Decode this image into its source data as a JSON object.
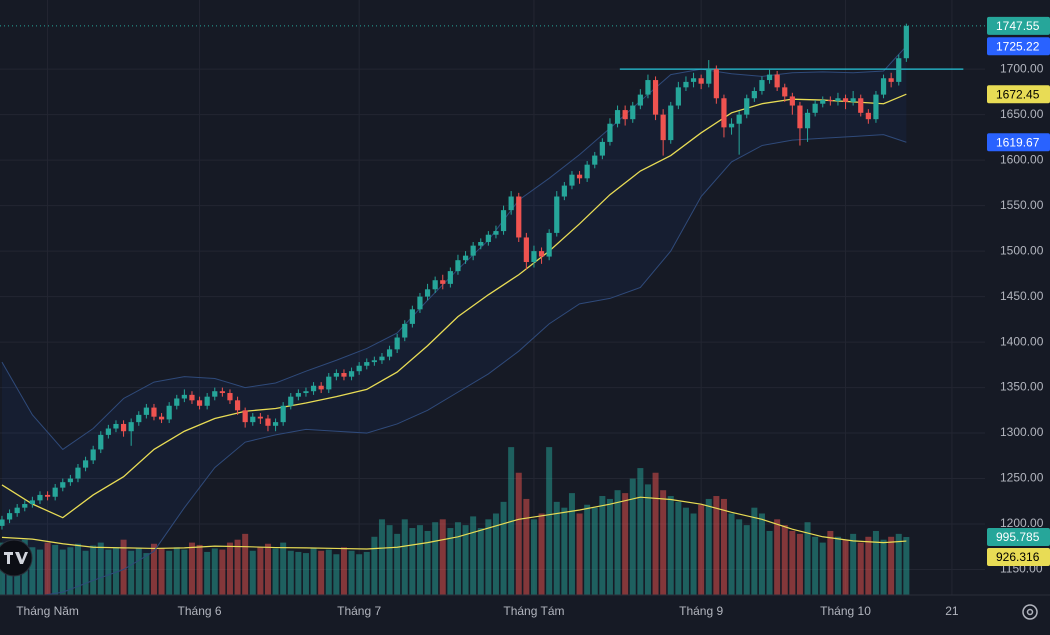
{
  "chart_data": {
    "type": "candlestick",
    "xlim": [
      -0.26,
      129.35
    ],
    "ylim": [
      1122,
      1776
    ],
    "vlim": [
      0,
      10220
    ],
    "xticks": [
      {
        "value": 6,
        "label": "Tháng Năm"
      },
      {
        "value": 26,
        "label": "Tháng 6"
      },
      {
        "value": 47,
        "label": "Tháng 7"
      },
      {
        "value": 70,
        "label": "Tháng Tám"
      },
      {
        "value": 92,
        "label": "Tháng 9"
      },
      {
        "value": 111,
        "label": "Tháng 10"
      },
      {
        "value": 125,
        "label": "21"
      }
    ],
    "yticks": [
      {
        "value": 1150,
        "label": "1150.00"
      },
      {
        "value": 1200,
        "label": "1200.00"
      },
      {
        "value": 1250,
        "label": "1250.00"
      },
      {
        "value": 1300,
        "label": "1300.00"
      },
      {
        "value": 1350,
        "label": "1350.00"
      },
      {
        "value": 1400,
        "label": "1400.00"
      },
      {
        "value": 1450,
        "label": "1450.00"
      },
      {
        "value": 1500,
        "label": "1500.00"
      },
      {
        "value": 1550,
        "label": "1550.00"
      },
      {
        "value": 1600,
        "label": "1600.00"
      },
      {
        "value": 1650,
        "label": "1650.00"
      },
      {
        "value": 1700,
        "label": "1700.00"
      }
    ],
    "grid": true,
    "up_color": "#26a69a",
    "down_color": "#ef5350",
    "open": [
      1198,
      1205,
      1212,
      1218,
      1222,
      1226,
      1232,
      1230,
      1240,
      1246,
      1250,
      1262,
      1270,
      1282,
      1298,
      1305,
      1310,
      1302,
      1312,
      1320,
      1328,
      1318,
      1315,
      1330,
      1338,
      1342,
      1336,
      1330,
      1340,
      1346,
      1344,
      1336,
      1325,
      1312,
      1318,
      1316,
      1308,
      1312,
      1330,
      1340,
      1344,
      1346,
      1352,
      1348,
      1362,
      1366,
      1362,
      1368,
      1374,
      1378,
      1380,
      1384,
      1392,
      1405,
      1420,
      1436,
      1450,
      1458,
      1468,
      1464,
      1478,
      1490,
      1495,
      1506,
      1510,
      1518,
      1522,
      1545,
      1560,
      1515,
      1488,
      1500,
      1494,
      1520,
      1560,
      1572,
      1584,
      1580,
      1595,
      1605,
      1620,
      1640,
      1655,
      1645,
      1660,
      1672,
      1688,
      1650,
      1622,
      1660,
      1680,
      1686,
      1690,
      1684,
      1700,
      1668,
      1636,
      1640,
      1650,
      1668,
      1676,
      1688,
      1694,
      1680,
      1670,
      1660,
      1635,
      1652,
      1662,
      1666,
      1665,
      1668,
      1664,
      1668,
      1652,
      1645,
      1672,
      1690,
      1686,
      1712
    ],
    "high": [
      1209,
      1216,
      1222,
      1226,
      1230,
      1236,
      1236,
      1244,
      1250,
      1254,
      1266,
      1274,
      1286,
      1302,
      1309,
      1314,
      1314,
      1316,
      1324,
      1332,
      1332,
      1322,
      1334,
      1342,
      1348,
      1346,
      1340,
      1344,
      1350,
      1350,
      1348,
      1340,
      1328,
      1322,
      1322,
      1320,
      1316,
      1334,
      1344,
      1348,
      1350,
      1356,
      1356,
      1366,
      1370,
      1370,
      1372,
      1378,
      1382,
      1384,
      1388,
      1396,
      1409,
      1424,
      1440,
      1454,
      1464,
      1472,
      1474,
      1482,
      1496,
      1500,
      1510,
      1514,
      1522,
      1528,
      1550,
      1566,
      1564,
      1520,
      1506,
      1504,
      1524,
      1566,
      1576,
      1588,
      1588,
      1599,
      1609,
      1624,
      1646,
      1660,
      1660,
      1664,
      1678,
      1694,
      1692,
      1656,
      1664,
      1686,
      1692,
      1696,
      1694,
      1710,
      1704,
      1672,
      1646,
      1654,
      1672,
      1680,
      1692,
      1700,
      1698,
      1684,
      1674,
      1664,
      1656,
      1666,
      1670,
      1670,
      1674,
      1672,
      1676,
      1672,
      1656,
      1676,
      1694,
      1696,
      1716,
      1750
    ],
    "low": [
      1194,
      1201,
      1208,
      1214,
      1218,
      1222,
      1226,
      1226,
      1236,
      1242,
      1246,
      1258,
      1266,
      1278,
      1294,
      1301,
      1296,
      1286,
      1308,
      1316,
      1314,
      1311,
      1311,
      1326,
      1334,
      1332,
      1326,
      1326,
      1336,
      1340,
      1332,
      1320,
      1306,
      1308,
      1310,
      1302,
      1302,
      1308,
      1326,
      1336,
      1340,
      1342,
      1344,
      1344,
      1358,
      1358,
      1358,
      1364,
      1370,
      1374,
      1376,
      1380,
      1388,
      1401,
      1416,
      1432,
      1446,
      1454,
      1458,
      1460,
      1474,
      1486,
      1490,
      1502,
      1506,
      1514,
      1518,
      1540,
      1510,
      1480,
      1482,
      1486,
      1490,
      1516,
      1556,
      1568,
      1574,
      1576,
      1591,
      1601,
      1616,
      1636,
      1638,
      1641,
      1656,
      1668,
      1644,
      1605,
      1618,
      1656,
      1676,
      1680,
      1678,
      1680,
      1662,
      1625,
      1628,
      1606,
      1646,
      1664,
      1672,
      1684,
      1676,
      1664,
      1650,
      1616,
      1620,
      1648,
      1658,
      1660,
      1660,
      1656,
      1660,
      1648,
      1640,
      1641,
      1668,
      1680,
      1682,
      1708
    ],
    "close": [
      1205,
      1212,
      1218,
      1222,
      1226,
      1232,
      1230,
      1240,
      1246,
      1250,
      1262,
      1270,
      1282,
      1298,
      1305,
      1310,
      1302,
      1312,
      1320,
      1328,
      1318,
      1315,
      1330,
      1338,
      1342,
      1336,
      1330,
      1340,
      1346,
      1344,
      1336,
      1325,
      1312,
      1318,
      1316,
      1308,
      1312,
      1330,
      1340,
      1344,
      1346,
      1352,
      1348,
      1362,
      1366,
      1362,
      1368,
      1374,
      1378,
      1380,
      1384,
      1392,
      1405,
      1420,
      1436,
      1450,
      1458,
      1468,
      1464,
      1478,
      1490,
      1495,
      1506,
      1510,
      1518,
      1522,
      1545,
      1560,
      1515,
      1488,
      1500,
      1494,
      1520,
      1560,
      1572,
      1584,
      1580,
      1595,
      1605,
      1620,
      1640,
      1655,
      1645,
      1660,
      1672,
      1688,
      1650,
      1622,
      1660,
      1680,
      1686,
      1690,
      1684,
      1700,
      1668,
      1636,
      1640,
      1650,
      1668,
      1676,
      1688,
      1694,
      1680,
      1670,
      1660,
      1635,
      1652,
      1662,
      1666,
      1665,
      1668,
      1664,
      1668,
      1652,
      1645,
      1672,
      1690,
      1686,
      1712,
      1747.55
    ],
    "volume": [
      900,
      850,
      800,
      950,
      820,
      780,
      900,
      860,
      780,
      820,
      880,
      760,
      850,
      900,
      780,
      820,
      950,
      760,
      800,
      720,
      880,
      800,
      760,
      820,
      780,
      900,
      860,
      740,
      800,
      780,
      900,
      950,
      1050,
      760,
      820,
      880,
      800,
      900,
      760,
      740,
      720,
      800,
      760,
      780,
      700,
      820,
      760,
      700,
      740,
      1000,
      1300,
      1200,
      1050,
      1300,
      1150,
      1200,
      1100,
      1250,
      1300,
      1150,
      1250,
      1200,
      1350,
      1150,
      1300,
      1400,
      1600,
      2540,
      2100,
      1650,
      1300,
      1400,
      2540,
      1600,
      1500,
      1750,
      1400,
      1550,
      1500,
      1700,
      1650,
      1800,
      1750,
      2000,
      2180,
      1900,
      2100,
      1800,
      1700,
      1600,
      1500,
      1400,
      1550,
      1650,
      1700,
      1650,
      1400,
      1300,
      1200,
      1500,
      1400,
      1100,
      1300,
      1200,
      1100,
      1050,
      1250,
      1000,
      900,
      1100,
      1000,
      950,
      1050,
      900,
      1000,
      1100,
      950,
      1000,
      1050,
      995.785
    ],
    "bands": {
      "x": [
        0,
        4,
        8,
        12,
        16,
        20,
        24,
        28,
        32,
        36,
        40,
        44,
        48,
        52,
        56,
        60,
        64,
        68,
        72,
        76,
        80,
        84,
        88,
        92,
        96,
        100,
        104,
        108,
        112,
        116,
        119
      ],
      "upper": [
        1378,
        1320,
        1282,
        1305,
        1338,
        1356,
        1362,
        1360,
        1350,
        1355,
        1368,
        1380,
        1393,
        1410,
        1446,
        1480,
        1512,
        1556,
        1580,
        1606,
        1635,
        1665,
        1694,
        1700,
        1695,
        1692,
        1696,
        1697,
        1696,
        1698,
        1725.22
      ],
      "middle": [
        1243,
        1222,
        1207,
        1232,
        1252,
        1282,
        1302,
        1316,
        1324,
        1327,
        1333,
        1340,
        1348,
        1367,
        1396,
        1428,
        1452,
        1474,
        1500,
        1530,
        1562,
        1588,
        1605,
        1630,
        1652,
        1662,
        1667,
        1666,
        1664,
        1662,
        1672.45
      ],
      "lower": [
        1108,
        1120,
        1125,
        1138,
        1150,
        1170,
        1218,
        1262,
        1290,
        1298,
        1304,
        1302,
        1300,
        1310,
        1325,
        1345,
        1365,
        1390,
        1420,
        1442,
        1448,
        1460,
        1500,
        1560,
        1598,
        1616,
        1622,
        1624,
        1626,
        1628,
        1619.67
      ],
      "vol_ma": [
        990,
        960,
        880,
        820,
        810,
        800,
        810,
        840,
        830,
        815,
        810,
        800,
        790,
        820,
        900,
        1000,
        1150,
        1300,
        1380,
        1460,
        1560,
        1680,
        1640,
        1560,
        1420,
        1300,
        1130,
        1000,
        930,
        900,
        926.316
      ]
    },
    "band_color": "#2f4a7a",
    "ma_color": "#e8dc55",
    "levels": [
      {
        "value": 1700,
        "start": 81.3,
        "end": 126.5,
        "color": "#26c6da"
      }
    ]
  }
}
